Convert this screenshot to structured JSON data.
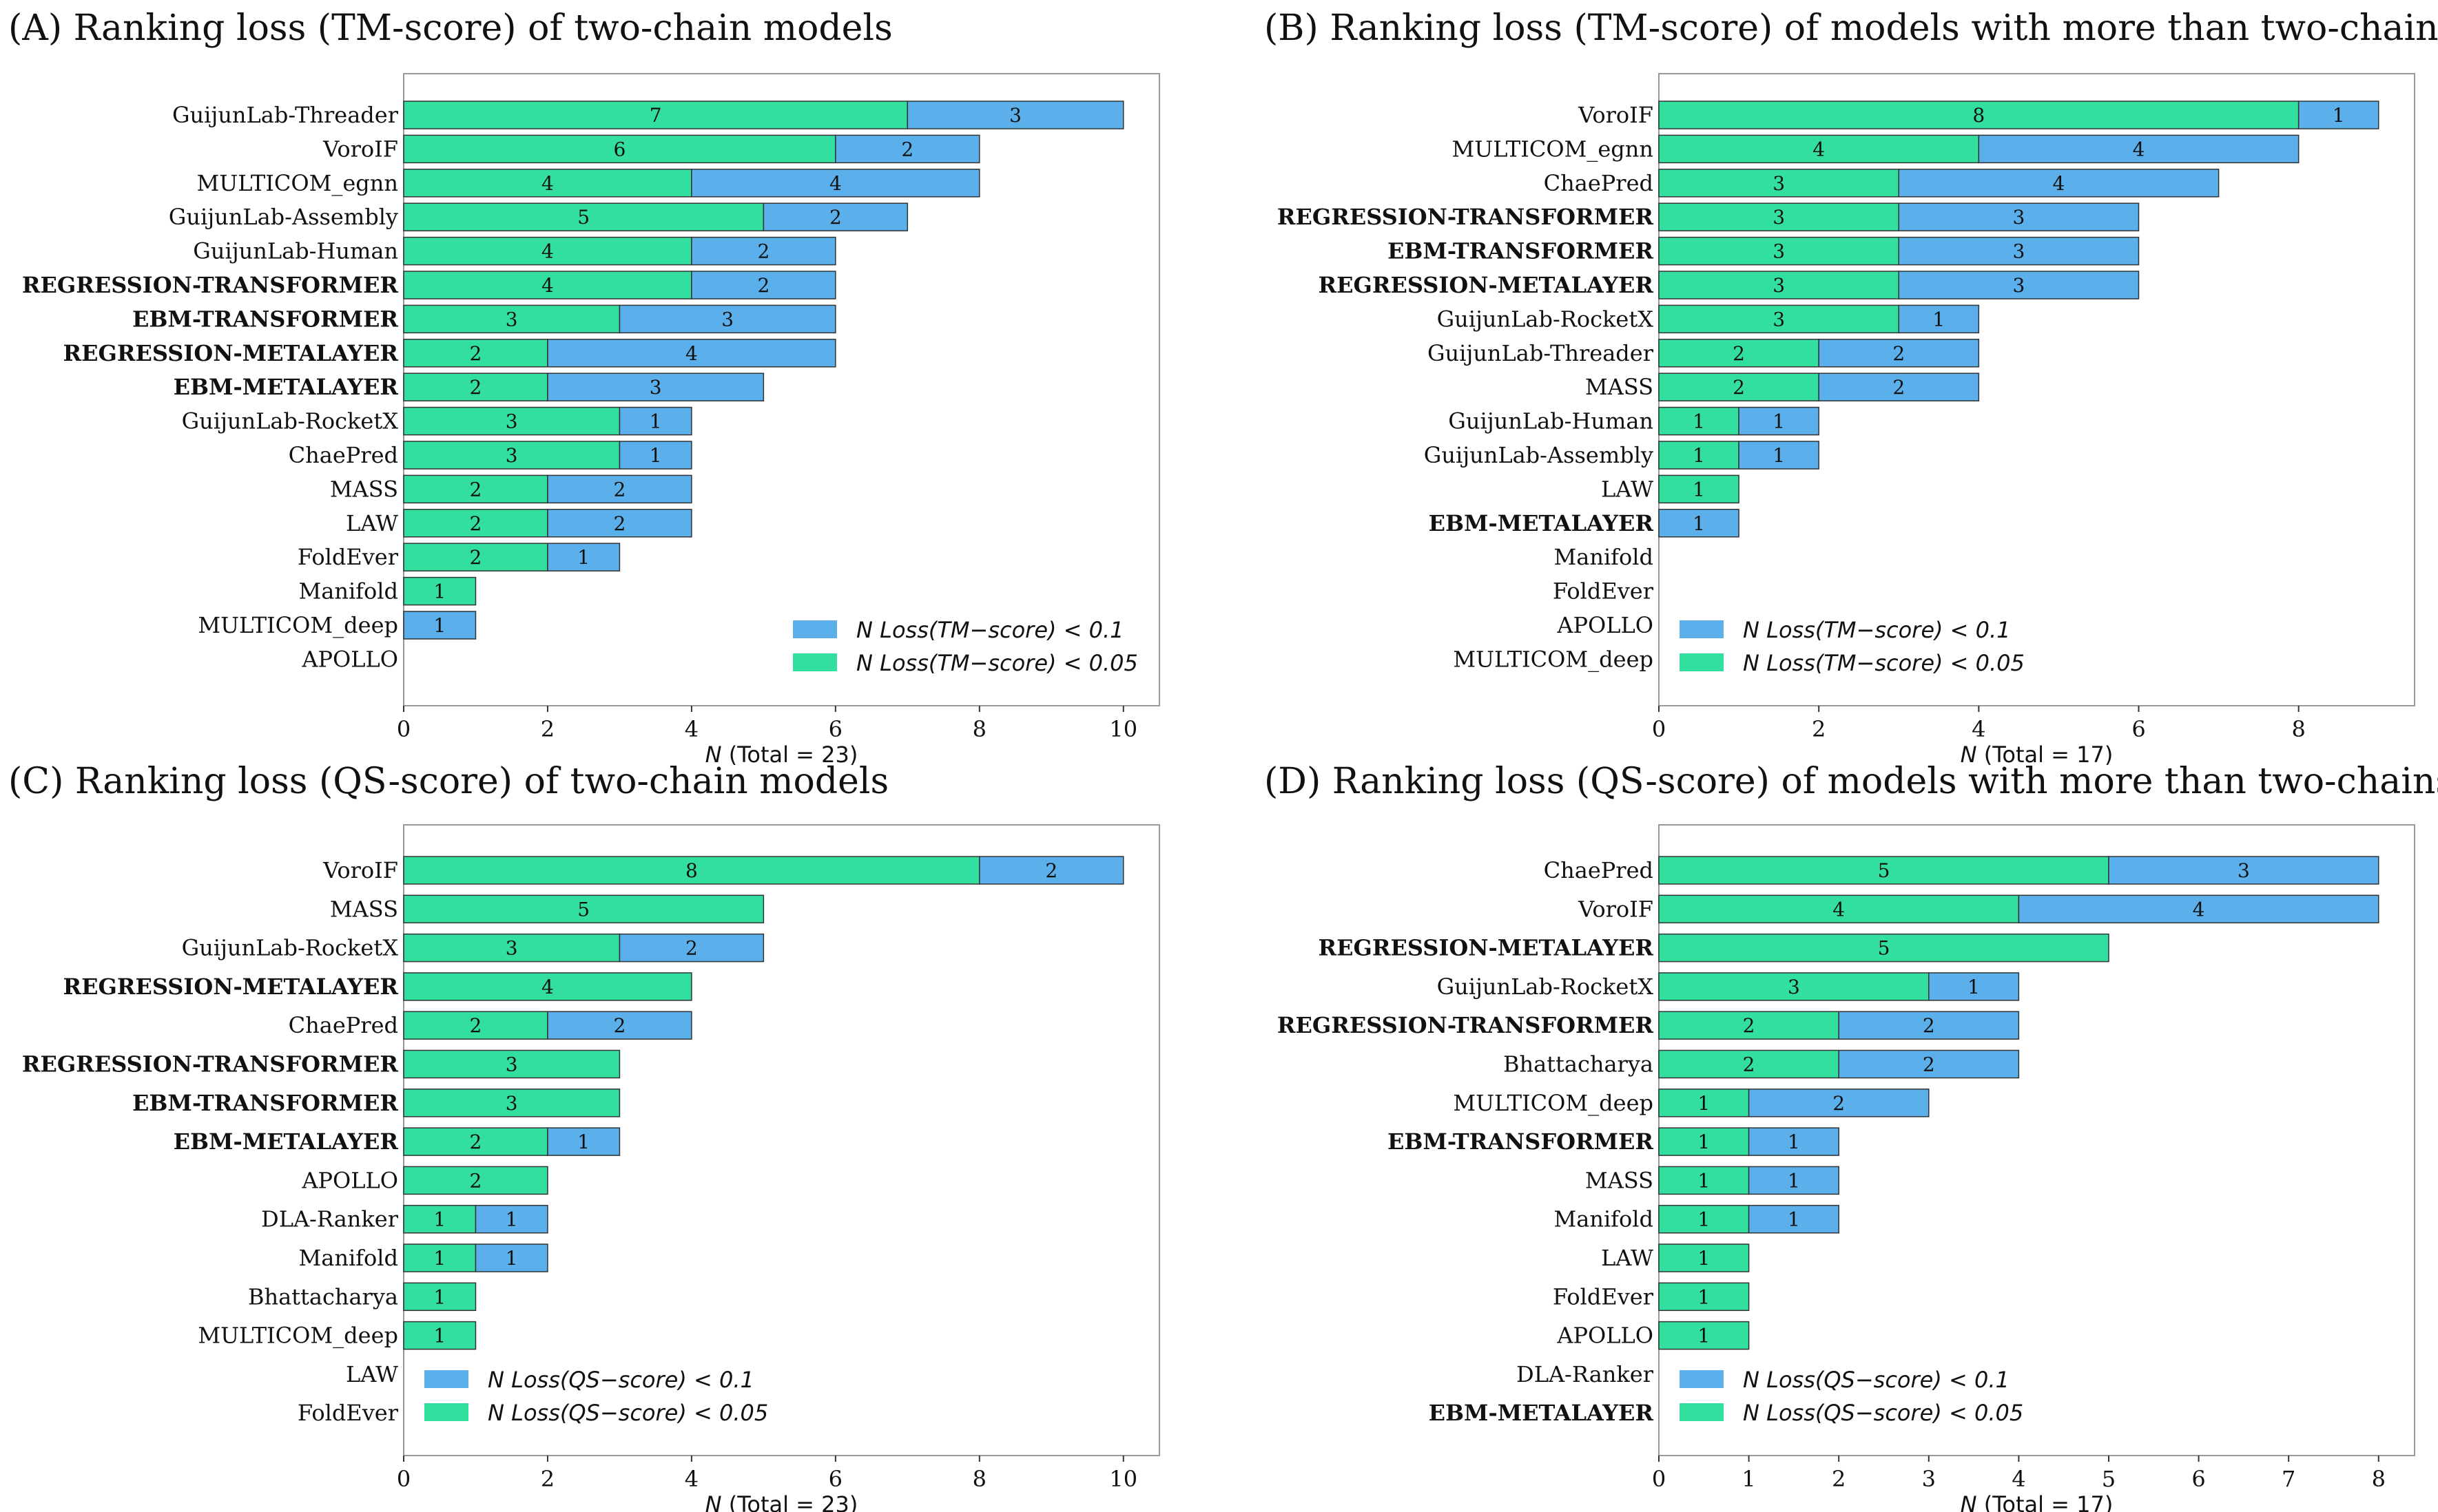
{
  "colors": {
    "low": "#33df9f",
    "high": "#5bafea",
    "edge": "#333333",
    "frame": "#999999"
  },
  "chart_data": [
    {
      "type": "bar",
      "orientation": "horizontal",
      "stacked": true,
      "title": "(A) Ranking loss (TM-score) of two-chain models",
      "xlabel_var": "N",
      "xlabel_rest": " (Total = 23)",
      "xlim": [
        0,
        10.5
      ],
      "xticks": [
        0,
        2,
        4,
        6,
        8,
        10
      ],
      "legend_position": "lower-right",
      "legend": [
        {
          "key": "high",
          "prefix": "N Loss(",
          "metric": "TM−score",
          "suffix": ") < 0.1"
        },
        {
          "key": "low",
          "prefix": "N Loss(",
          "metric": "TM−score",
          "suffix": ") < 0.05"
        }
      ],
      "categories": [
        "GuijunLab-Threader",
        "VoroIF",
        "MULTICOM_egnn",
        "GuijunLab-Assembly",
        "GuijunLab-Human",
        "REGRESSION-TRANSFORMER",
        "EBM-TRANSFORMER",
        "REGRESSION-METALAYER",
        "EBM-METALAYER",
        "GuijunLab-RocketX",
        "ChaePred",
        "MASS",
        "LAW",
        "FoldEver",
        "Manifold",
        "MULTICOM_deep",
        "APOLLO"
      ],
      "bold": [
        false,
        false,
        false,
        false,
        false,
        true,
        true,
        true,
        true,
        false,
        false,
        false,
        false,
        false,
        false,
        false,
        false
      ],
      "series": [
        {
          "name": "N Loss(TM-score) < 0.05",
          "key": "low",
          "values": [
            7,
            6,
            4,
            5,
            4,
            4,
            3,
            2,
            2,
            3,
            3,
            2,
            2,
            2,
            1,
            0,
            0
          ]
        },
        {
          "name": "N Loss(TM-score) < 0.1",
          "key": "high",
          "values": [
            3,
            2,
            4,
            2,
            2,
            2,
            3,
            4,
            3,
            1,
            1,
            2,
            2,
            1,
            0,
            1,
            0
          ]
        }
      ]
    },
    {
      "type": "bar",
      "orientation": "horizontal",
      "stacked": true,
      "title": "(B) Ranking loss (TM-score) of models with more than two-chains",
      "xlabel_var": "N",
      "xlabel_rest": " (Total = 17)",
      "xlim": [
        0,
        9.45
      ],
      "xticks": [
        0,
        2,
        4,
        6,
        8
      ],
      "legend_position": "lower-left",
      "legend": [
        {
          "key": "high",
          "prefix": "N Loss(",
          "metric": "TM−score",
          "suffix": ") < 0.1"
        },
        {
          "key": "low",
          "prefix": "N Loss(",
          "metric": "TM−score",
          "suffix": ") < 0.05"
        }
      ],
      "categories": [
        "VoroIF",
        "MULTICOM_egnn",
        "ChaePred",
        "REGRESSION-TRANSFORMER",
        "EBM-TRANSFORMER",
        "REGRESSION-METALAYER",
        "GuijunLab-RocketX",
        "GuijunLab-Threader",
        "MASS",
        "GuijunLab-Human",
        "GuijunLab-Assembly",
        "LAW",
        "EBM-METALAYER",
        "Manifold",
        "FoldEver",
        "APOLLO",
        "MULTICOM_deep"
      ],
      "bold": [
        false,
        false,
        false,
        true,
        true,
        true,
        false,
        false,
        false,
        false,
        false,
        false,
        true,
        false,
        false,
        false,
        false
      ],
      "series": [
        {
          "name": "N Loss(TM-score) < 0.05",
          "key": "low",
          "values": [
            8,
            4,
            3,
            3,
            3,
            3,
            3,
            2,
            2,
            1,
            1,
            1,
            0,
            0,
            0,
            0,
            0
          ]
        },
        {
          "name": "N Loss(TM-score) < 0.1",
          "key": "high",
          "values": [
            1,
            4,
            4,
            3,
            3,
            3,
            1,
            2,
            2,
            1,
            1,
            0,
            1,
            0,
            0,
            0,
            0
          ]
        }
      ]
    },
    {
      "type": "bar",
      "orientation": "horizontal",
      "stacked": true,
      "title": "(C) Ranking loss (QS-score) of two-chain models",
      "xlabel_var": "N",
      "xlabel_rest": " (Total = 23)",
      "xlim": [
        0,
        10.5
      ],
      "xticks": [
        0,
        2,
        4,
        6,
        8,
        10
      ],
      "legend_position": "lower-left",
      "legend": [
        {
          "key": "high",
          "prefix": "N Loss(",
          "metric": "QS−score",
          "suffix": ") < 0.1"
        },
        {
          "key": "low",
          "prefix": "N Loss(",
          "metric": "QS−score",
          "suffix": ") < 0.05"
        }
      ],
      "categories": [
        "VoroIF",
        "MASS",
        "GuijunLab-RocketX",
        "REGRESSION-METALAYER",
        "ChaePred",
        "REGRESSION-TRANSFORMER",
        "EBM-TRANSFORMER",
        "EBM-METALAYER",
        "APOLLO",
        "DLA-Ranker",
        "Manifold",
        "Bhattacharya",
        "MULTICOM_deep",
        "LAW",
        "FoldEver"
      ],
      "bold": [
        false,
        false,
        false,
        true,
        false,
        true,
        true,
        true,
        false,
        false,
        false,
        false,
        false,
        false,
        false
      ],
      "series": [
        {
          "name": "N Loss(QS-score) < 0.05",
          "key": "low",
          "values": [
            8,
            5,
            3,
            4,
            2,
            3,
            3,
            2,
            2,
            1,
            1,
            1,
            1,
            0,
            0
          ]
        },
        {
          "name": "N Loss(QS-score) < 0.1",
          "key": "high",
          "values": [
            2,
            0,
            2,
            0,
            2,
            0,
            0,
            1,
            0,
            1,
            1,
            0,
            0,
            0,
            0
          ]
        }
      ]
    },
    {
      "type": "bar",
      "orientation": "horizontal",
      "stacked": true,
      "title": "(D) Ranking loss (QS-score) of models with more than two-chains",
      "xlabel_var": "N",
      "xlabel_rest": " (Total = 17)",
      "xlim": [
        0,
        8.4
      ],
      "xticks": [
        0,
        1,
        2,
        3,
        4,
        5,
        6,
        7,
        8
      ],
      "legend_position": "lower-left",
      "legend": [
        {
          "key": "high",
          "prefix": "N Loss(",
          "metric": "QS−score",
          "suffix": ") < 0.1"
        },
        {
          "key": "low",
          "prefix": "N Loss(",
          "metric": "QS−score",
          "suffix": ") < 0.05"
        }
      ],
      "categories": [
        "ChaePred",
        "VoroIF",
        "REGRESSION-METALAYER",
        "GuijunLab-RocketX",
        "REGRESSION-TRANSFORMER",
        "Bhattacharya",
        "MULTICOM_deep",
        "EBM-TRANSFORMER",
        "MASS",
        "Manifold",
        "LAW",
        "FoldEver",
        "APOLLO",
        "DLA-Ranker",
        "EBM-METALAYER"
      ],
      "bold": [
        false,
        false,
        true,
        false,
        true,
        false,
        false,
        true,
        false,
        false,
        false,
        false,
        false,
        false,
        true
      ],
      "series": [
        {
          "name": "N Loss(QS-score) < 0.05",
          "key": "low",
          "values": [
            5,
            4,
            5,
            3,
            2,
            2,
            1,
            1,
            1,
            1,
            1,
            1,
            1,
            0,
            0
          ]
        },
        {
          "name": "N Loss(QS-score) < 0.1",
          "key": "high",
          "values": [
            3,
            4,
            0,
            1,
            2,
            2,
            2,
            1,
            1,
            1,
            0,
            0,
            0,
            0,
            0
          ]
        }
      ]
    }
  ]
}
